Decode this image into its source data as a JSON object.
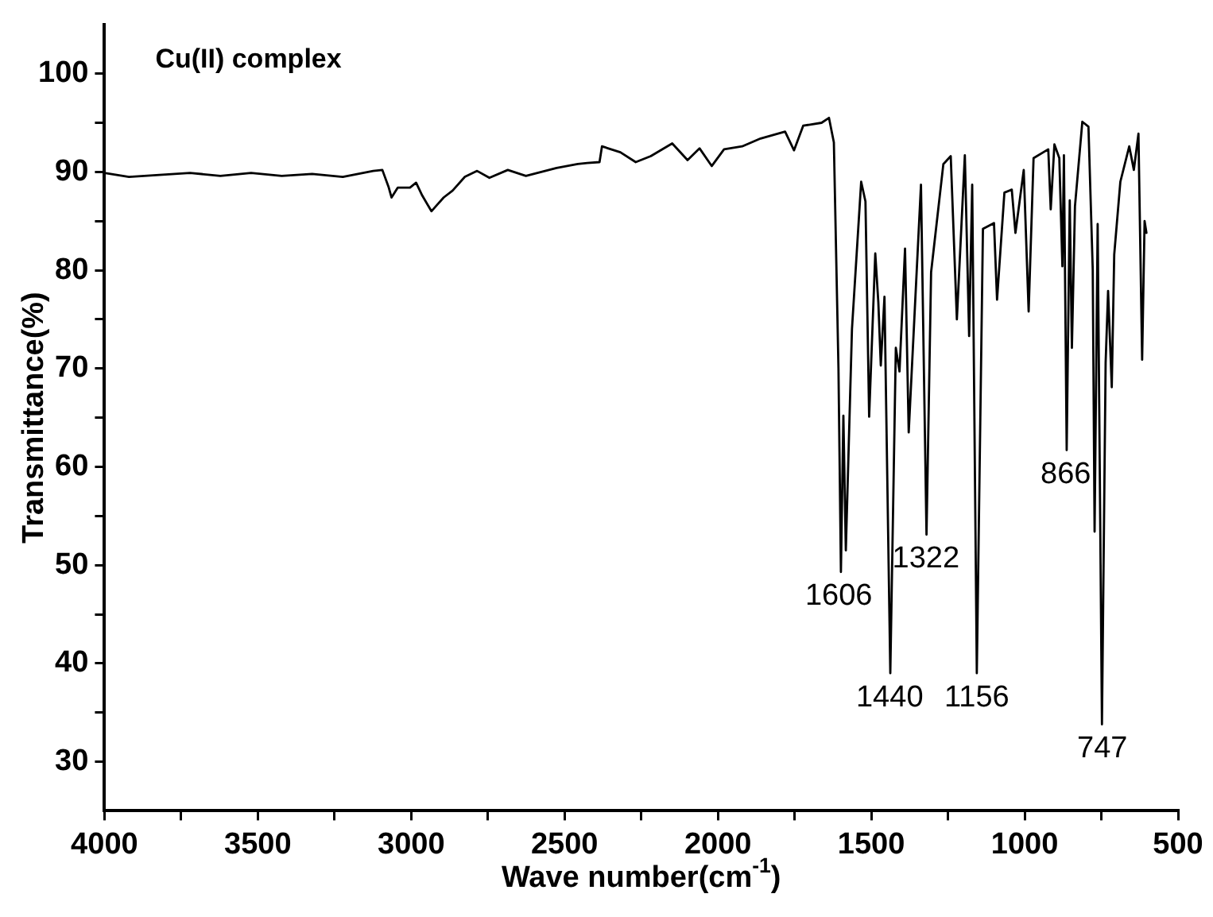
{
  "chart_data": {
    "type": "line",
    "title": "Cu(II) complex",
    "xlabel": "Wave number(cm$^{-1}$)",
    "ylabel": "Transmittance(%)",
    "xlim": [
      4000,
      500
    ],
    "ylim": [
      25,
      105
    ],
    "xticks": [
      4000,
      {
        "value": 3750,
        "label": null
      },
      3500,
      {
        "value": 3250,
        "label": null
      },
      3000,
      {
        "value": 2750,
        "label": null
      },
      2500,
      {
        "value": 2250,
        "label": null
      },
      2000,
      {
        "value": 1750,
        "label": null
      },
      1500,
      {
        "value": 1250,
        "label": null
      },
      1000,
      {
        "value": 750,
        "label": null
      },
      500
    ],
    "yticks": [
      30,
      {
        "value": 35,
        "label": null
      },
      40,
      {
        "value": 45,
        "label": null
      },
      50,
      {
        "value": 55,
        "label": null
      },
      60,
      {
        "value": 65,
        "label": null
      },
      70,
      {
        "value": 75,
        "label": null
      },
      80,
      {
        "value": 85,
        "label": null
      },
      90,
      {
        "value": 95,
        "label": null
      },
      100
    ],
    "grid": false,
    "legend": false,
    "marker": "none",
    "line_style": "solid",
    "series": [
      {
        "color": "#000000",
        "x": [
          4000,
          3920,
          3821,
          3721,
          3622,
          3522,
          3422,
          3323,
          3223,
          3124,
          3094,
          3074,
          3064,
          3044,
          3004,
          2984,
          2964,
          2934,
          2914,
          2894,
          2865,
          2825,
          2785,
          2745,
          2685,
          2626,
          2526,
          2457,
          2426,
          2386,
          2378,
          2318,
          2268,
          2219,
          2149,
          2099,
          2060,
          2020,
          1980,
          1921,
          1861,
          1781,
          1752,
          1722,
          1662,
          1638,
          1622,
          1607,
          1599,
          1591,
          1583,
          1563,
          1533,
          1519,
          1507,
          1487,
          1477,
          1469,
          1457,
          1438,
          1420,
          1408,
          1390,
          1378,
          1338,
          1320,
          1305,
          1265,
          1241,
          1221,
          1195,
          1181,
          1171,
          1156,
          1136,
          1100,
          1090,
          1066,
          1042,
          1030,
          1003,
          987,
          971,
          923,
          915,
          903,
          887,
          877,
          872,
          863,
          853,
          846,
          836,
          812,
          792,
          778,
          772,
          762,
          748,
          736,
          728,
          716,
          708,
          688,
          659,
          644,
          629,
          617,
          609,
          603
        ],
        "values": [
          89.9,
          89.5,
          89.7,
          89.9,
          89.6,
          89.9,
          89.6,
          89.8,
          89.5,
          90.1,
          90.2,
          88.5,
          87.4,
          88.4,
          88.4,
          88.9,
          87.6,
          86.0,
          86.7,
          87.4,
          88.1,
          89.5,
          90.1,
          89.4,
          90.2,
          89.6,
          90.4,
          90.8,
          90.9,
          91.0,
          92.6,
          92.0,
          91.0,
          91.6,
          92.9,
          91.2,
          92.4,
          90.6,
          92.3,
          92.6,
          93.4,
          94.1,
          92.2,
          94.7,
          95.0,
          95.5,
          93.0,
          70.0,
          49.3,
          65.2,
          51.5,
          74.0,
          89.0,
          87.0,
          65.1,
          81.7,
          76.7,
          70.3,
          77.3,
          39.0,
          72.1,
          69.7,
          82.2,
          63.5,
          88.7,
          53.1,
          79.8,
          90.8,
          91.6,
          75.0,
          91.7,
          73.3,
          88.7,
          39.0,
          84.2,
          84.8,
          77.0,
          87.9,
          88.2,
          83.8,
          90.2,
          75.8,
          91.4,
          92.3,
          86.2,
          92.8,
          91.4,
          80.4,
          91.7,
          61.7,
          87.1,
          72.1,
          86.5,
          95.1,
          94.6,
          80.0,
          53.4,
          84.7,
          33.8,
          70.6,
          77.9,
          68.1,
          81.6,
          89.0,
          92.6,
          90.2,
          93.9,
          70.9,
          85.0,
          83.8
        ]
      }
    ],
    "annotations": [
      {
        "text": "1606",
        "x": 1606,
        "y": 49.3
      },
      {
        "text": "1440",
        "x": 1440,
        "y": 39.0
      },
      {
        "text": "1322",
        "x": 1322,
        "y": 53.1
      },
      {
        "text": "1156",
        "x": 1156,
        "y": 39.0
      },
      {
        "text": "866",
        "x": 866,
        "y": 61.7
      },
      {
        "text": "747",
        "x": 747,
        "y": 33.8
      }
    ]
  }
}
